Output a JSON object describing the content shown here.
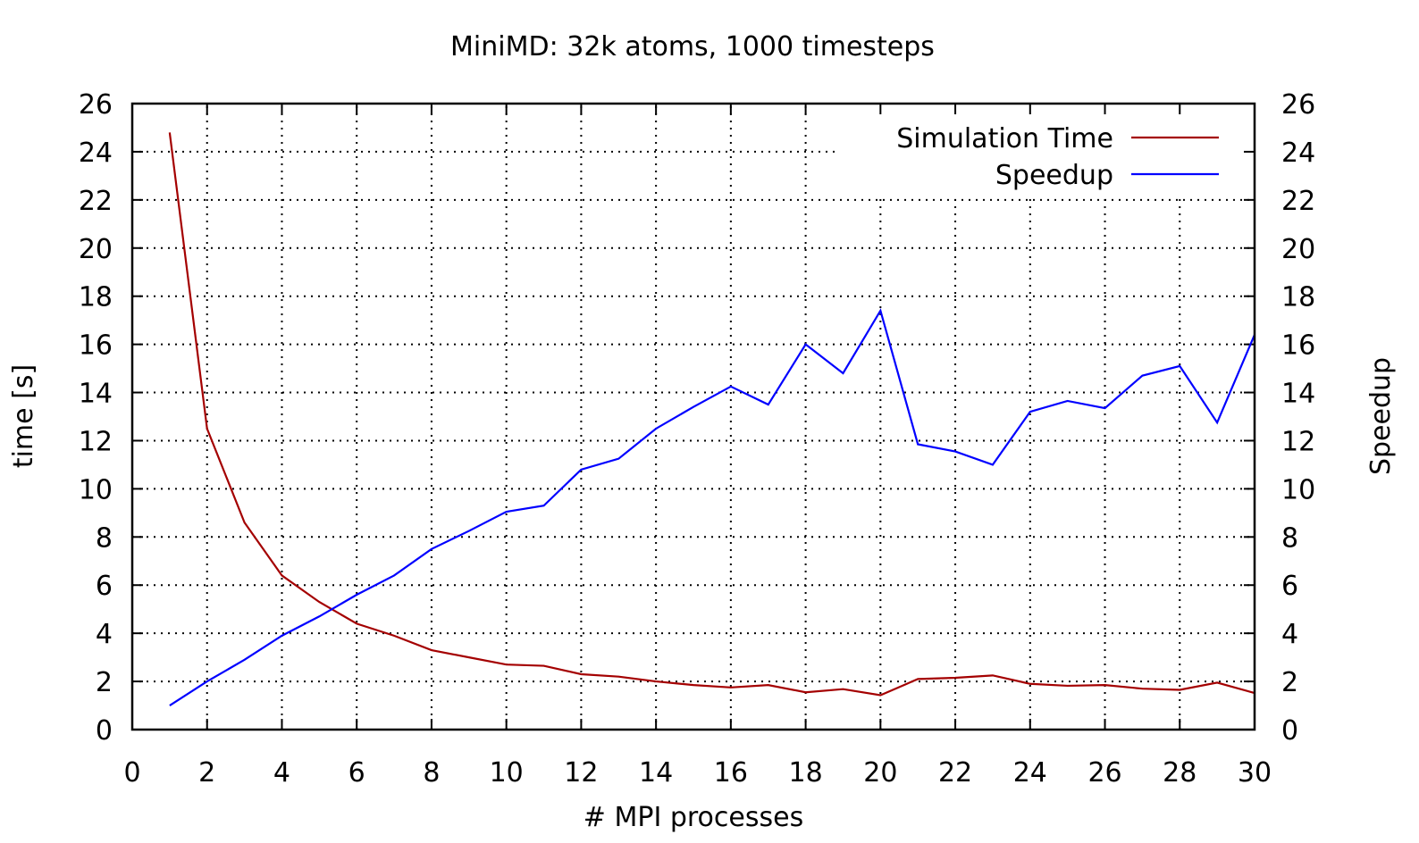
{
  "chart_data": {
    "type": "line",
    "title": "MiniMD: 32k atoms, 1000 timesteps",
    "xlabel": "# MPI processes",
    "ylabel": "time [s]",
    "y2label": "Speedup",
    "xlim": [
      0,
      30
    ],
    "ylim": [
      0,
      26
    ],
    "y2lim": [
      0,
      26
    ],
    "grid": true,
    "legend_position": "top-right",
    "x_ticks": [
      "0",
      "2",
      "4",
      "6",
      "8",
      "10",
      "12",
      "14",
      "16",
      "18",
      "20",
      "22",
      "24",
      "26",
      "28",
      "30"
    ],
    "y_ticks": [
      "0",
      "2",
      "4",
      "6",
      "8",
      "10",
      "12",
      "14",
      "16",
      "18",
      "20",
      "22",
      "24",
      "26"
    ],
    "y2_ticks": [
      "0",
      "2",
      "4",
      "6",
      "8",
      "10",
      "12",
      "14",
      "16",
      "18",
      "20",
      "22",
      "24",
      "26"
    ],
    "x": [
      1,
      2,
      3,
      4,
      5,
      6,
      7,
      8,
      9,
      10,
      11,
      12,
      13,
      14,
      15,
      16,
      17,
      18,
      19,
      20,
      21,
      22,
      23,
      24,
      25,
      26,
      27,
      28,
      29,
      30
    ],
    "series": [
      {
        "name": "Simulation Time",
        "color": "#a40000",
        "axis": "y",
        "values": [
          24.8,
          12.5,
          8.6,
          6.4,
          5.3,
          4.4,
          3.9,
          3.3,
          3.0,
          2.7,
          2.65,
          2.3,
          2.2,
          2.0,
          1.85,
          1.75,
          1.85,
          1.55,
          1.68,
          1.43,
          2.1,
          2.15,
          2.25,
          1.9,
          1.82,
          1.85,
          1.7,
          1.65,
          1.95,
          1.52
        ]
      },
      {
        "name": "Speedup",
        "color": "#0000ff",
        "axis": "y2",
        "values": [
          1.0,
          2.0,
          2.9,
          3.9,
          4.7,
          5.6,
          6.4,
          7.5,
          8.25,
          9.05,
          9.3,
          10.8,
          11.25,
          12.5,
          13.4,
          14.25,
          13.5,
          16.0,
          14.8,
          17.4,
          11.85,
          11.55,
          11.0,
          13.2,
          13.65,
          13.35,
          14.7,
          15.1,
          12.75,
          16.4
        ]
      }
    ]
  }
}
